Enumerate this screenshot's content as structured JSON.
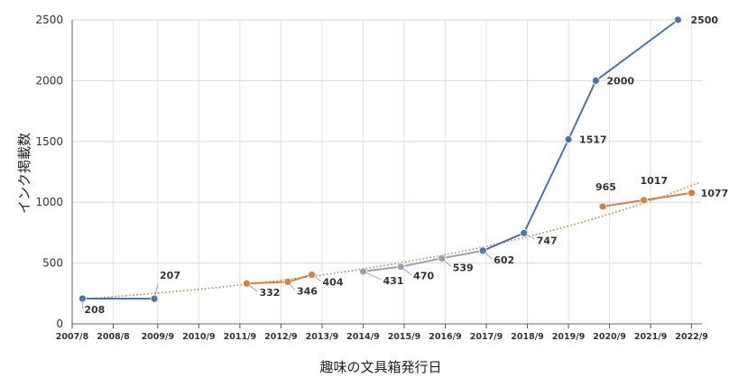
{
  "chart_data": {
    "type": "line",
    "xlabel": "趣味の文具箱発行日",
    "ylabel": "インク掲載数",
    "ylim": [
      0,
      2500
    ],
    "yticks": [
      "0",
      "500",
      "1000",
      "1500",
      "2000",
      "2500"
    ],
    "xlim": [
      "2007/8",
      "2022/12"
    ],
    "xticks": [
      "2007/8",
      "2008/8",
      "2009/9",
      "2010/9",
      "2011/9",
      "2012/9",
      "2013/9",
      "2014/9",
      "2015/9",
      "2016/9",
      "2017/9",
      "2018/9",
      "2019/9",
      "2020/9",
      "2021/9",
      "2022/9"
    ],
    "grid": "vertical",
    "colors": {
      "blue": "#4a72b0",
      "orange": "#e07b39",
      "gray": "#9aa3ad",
      "trend": "#e07b39"
    },
    "segments": [
      {
        "color": "blue",
        "points": [
          {
            "x": "2007/11",
            "y": 208,
            "label": "208"
          },
          {
            "x": "2009/8",
            "y": 207,
            "label": "207"
          }
        ]
      },
      {
        "color": "orange",
        "points": [
          {
            "x": "2011/11",
            "y": 332,
            "label": "332"
          },
          {
            "x": "2012/11",
            "y": 346,
            "label": "346"
          },
          {
            "x": "2013/6",
            "y": 404,
            "label": "404"
          }
        ]
      },
      {
        "color": "gray",
        "points": [
          {
            "x": "2014/9",
            "y": 431,
            "label": "431"
          },
          {
            "x": "2015/8",
            "y": 470,
            "label": "470"
          },
          {
            "x": "2016/8",
            "y": 539,
            "label": "539"
          },
          {
            "x": "2017/8",
            "y": 602,
            "label": "602"
          }
        ]
      },
      {
        "color": "blue",
        "points": [
          {
            "x": "2017/8",
            "y": 602
          },
          {
            "x": "2018/8",
            "y": 747,
            "label": "747"
          },
          {
            "x": "2019/9",
            "y": 1517,
            "label": "1517"
          },
          {
            "x": "2020/5",
            "y": 2000,
            "label": "2000"
          },
          {
            "x": "2022/5",
            "y": 2500,
            "label": "2500"
          }
        ]
      },
      {
        "color": "orange",
        "points": [
          {
            "x": "2020/7",
            "y": 965,
            "label": "965"
          },
          {
            "x": "2021/7",
            "y": 1017,
            "label": "1017"
          },
          {
            "x": "2022/9",
            "y": 1077,
            "label": "1077"
          }
        ]
      }
    ],
    "trendline": {
      "type": "exponential",
      "style": "dotted",
      "points": [
        {
          "x": "2007/11",
          "y": 205
        },
        {
          "x": "2022/11",
          "y": 1160
        }
      ]
    }
  }
}
